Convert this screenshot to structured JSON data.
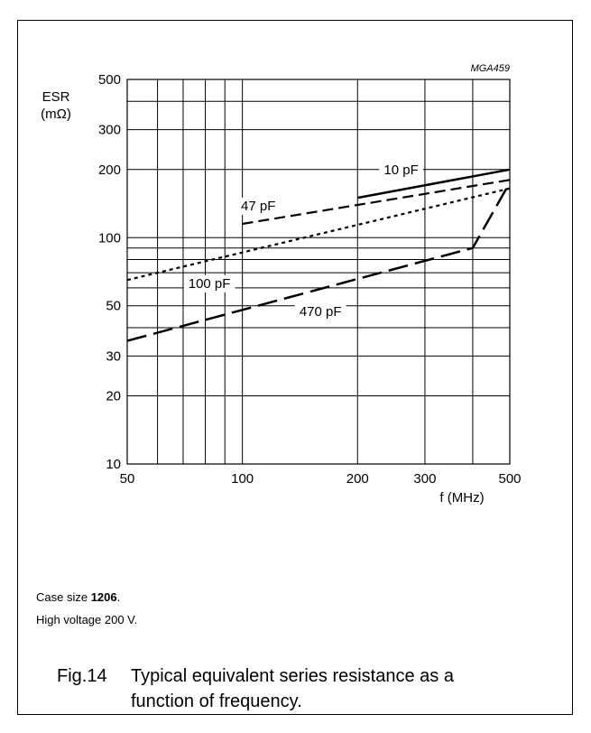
{
  "figure": {
    "caption_id": "Fig.14",
    "caption_text": "Typical equivalent series resistance as a function of frequency.",
    "notes": {
      "case_prefix": "Case size ",
      "case_value": "1206",
      "case_suffix": ".",
      "voltage": "High voltage 200 V."
    }
  },
  "chart_data": {
    "type": "line",
    "figure_code": "MGA459",
    "ylabel_line1": "ESR",
    "ylabel_line2": "(mΩ)",
    "xlabel": "f  (MHz)",
    "x_scale": "log",
    "y_scale": "log",
    "xlim": [
      50,
      500
    ],
    "ylim": [
      10,
      500
    ],
    "grid": true,
    "x_ticks": [
      50,
      100,
      200,
      300,
      500
    ],
    "x_tick_labels": [
      "50",
      "100",
      "200",
      "300",
      "500"
    ],
    "y_ticks": [
      10,
      20,
      30,
      50,
      100,
      200,
      300,
      500
    ],
    "y_tick_labels": [
      "10",
      "20",
      "30",
      "50",
      "100",
      "200",
      "300",
      "500"
    ],
    "x_gridlines": [
      60,
      70,
      80,
      90,
      100,
      200,
      300,
      400
    ],
    "y_gridlines": [
      20,
      30,
      40,
      50,
      60,
      70,
      80,
      90,
      100,
      200,
      300,
      400
    ],
    "series": [
      {
        "name": "10 pF",
        "style": "solid",
        "x": [
          200,
          500
        ],
        "y": [
          150,
          200
        ]
      },
      {
        "name": "47 pF",
        "style": "dashed",
        "x": [
          100,
          500
        ],
        "y": [
          115,
          180
        ]
      },
      {
        "name": "100 pF",
        "style": "dotted",
        "x": [
          50,
          500
        ],
        "y": [
          65,
          165
        ]
      },
      {
        "name": "470 pF",
        "style": "longdash",
        "x": [
          50,
          400,
          500
        ],
        "y": [
          35,
          90,
          175
        ]
      }
    ]
  }
}
